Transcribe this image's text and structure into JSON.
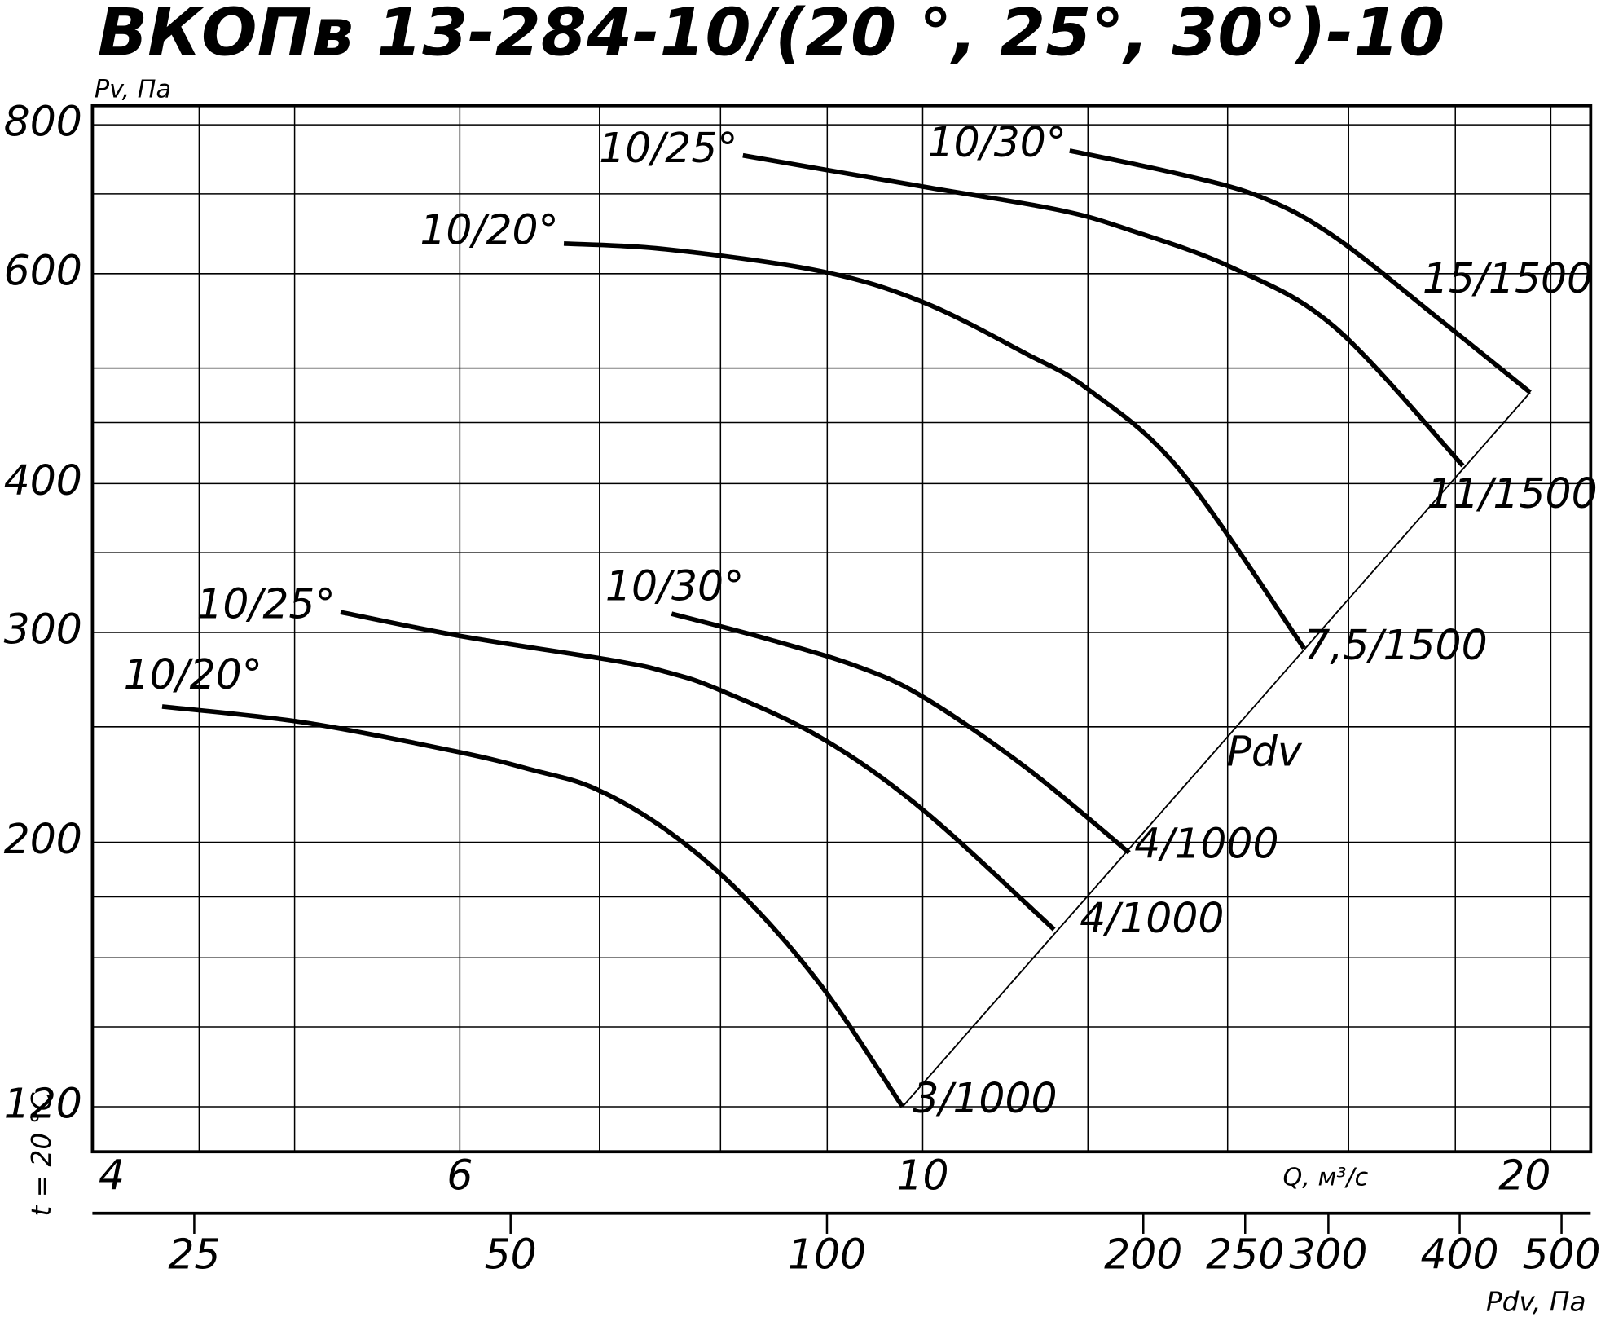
{
  "chart_data": {
    "type": "line",
    "title": "ВКОПв 13-284-10/(20 °, 25°, 30°)-10",
    "y_label": "Pv, Па",
    "x_label": "Q, м³/с",
    "x2_label": "Pdv, Па",
    "side_label": "t = 20 °C",
    "x_log": true,
    "y_log": true,
    "xlim": [
      4,
      20.9
    ],
    "xticks": [
      4,
      6,
      10,
      20
    ],
    "xgrid": [
      4.5,
      5,
      7,
      8,
      9,
      12,
      14,
      16,
      18
    ],
    "ylim": [
      110,
      830
    ],
    "yticks": [
      120,
      200,
      300,
      400,
      600,
      800
    ],
    "ygrid": [
      140,
      160,
      180,
      250,
      350,
      450,
      500,
      700
    ],
    "x2lim": [
      20,
      533
    ],
    "x2ticks": [
      25,
      50,
      100,
      200,
      250,
      300,
      400,
      500
    ],
    "grid": true,
    "color": "#000000",
    "series": [
      {
        "name": "10/20°",
        "end_label": "3/1000",
        "x": [
          4.32,
          5.06,
          6.0,
          6.5,
          6.96,
          7.53,
          8.16,
          8.93,
          9.78
        ],
        "values": [
          260,
          252,
          238,
          230,
          222,
          205,
          182,
          152,
          120
        ]
      },
      {
        "name": "10/25°",
        "end_label": "4/1000",
        "x": [
          5.26,
          6.0,
          7.12,
          7.53,
          7.97,
          8.93,
          10,
          11.56
        ],
        "values": [
          312,
          298,
          284,
          278,
          269,
          245,
          213,
          169
        ]
      },
      {
        "name": "10/30°",
        "end_label": "4/1000",
        "x": [
          7.58,
          8.44,
          9.3,
          10,
          11.21,
          12.56
        ],
        "values": [
          311,
          296,
          281,
          265,
          231,
          196
        ]
      },
      {
        "name": "10/20°",
        "end_label": "7,5/1500",
        "x": [
          6.73,
          7.53,
          8.93,
          10,
          11.21,
          12.0,
          13.29,
          15.23
        ],
        "values": [
          636,
          629,
          603,
          568,
          514,
          480,
          410,
          291
        ]
      },
      {
        "name": "10/25°",
        "end_label": "11/1500",
        "x": [
          8.2,
          10,
          11.6,
          12.56,
          14.07,
          15.76,
          18.15
        ],
        "values": [
          754,
          710,
          679,
          653,
          607,
          541,
          414
        ]
      },
      {
        "name": "10/30°",
        "end_label": "15/1500",
        "x": [
          11.76,
          13.29,
          14.55,
          15.76,
          17.65,
          19.55
        ],
        "values": [
          761,
          727,
          695,
          644,
          551,
          477
        ]
      }
    ],
    "pdv_line": {
      "name": "Pdv",
      "x": [
        9.78,
        19.55
      ],
      "values": [
        120,
        477
      ]
    }
  }
}
